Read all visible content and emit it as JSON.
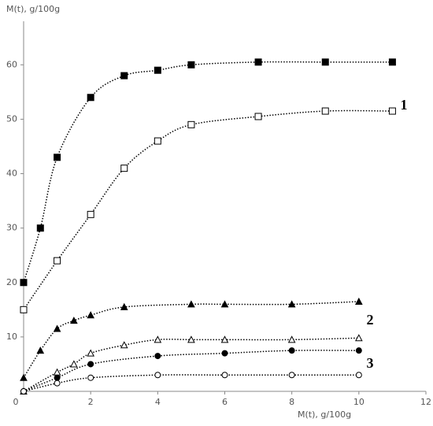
{
  "chart_data": {
    "type": "scatter",
    "y_label": "M(t), g/100g",
    "x_label": "M(t), g/100g",
    "xlim": [
      0,
      12
    ],
    "ylim": [
      0,
      68
    ],
    "xticks": [
      0,
      2,
      4,
      6,
      8,
      10,
      12
    ],
    "yticks": [
      10,
      20,
      30,
      40,
      50,
      60
    ],
    "grid": false,
    "trendline": "dotted",
    "annotations": [
      "1",
      "2",
      "3"
    ],
    "series": [
      {
        "marker": "square",
        "filled": true,
        "color": "#000000",
        "x": [
          0,
          0.5,
          1,
          2,
          3,
          4,
          5,
          7,
          9,
          11
        ],
        "values": [
          20,
          30,
          43,
          54,
          58,
          59,
          60,
          60.5,
          60.5,
          60.5
        ]
      },
      {
        "marker": "square",
        "filled": false,
        "color": "#000000",
        "x": [
          0,
          1,
          2,
          3,
          4,
          5,
          7,
          9,
          11
        ],
        "values": [
          15,
          24,
          32.5,
          41,
          46,
          49,
          50.5,
          51.5,
          51.5
        ]
      },
      {
        "marker": "triangle",
        "filled": true,
        "color": "#000000",
        "x": [
          0,
          0.5,
          1,
          1.5,
          2,
          3,
          5,
          6,
          8,
          10
        ],
        "values": [
          2.5,
          7.5,
          11.5,
          13,
          14,
          15.5,
          16,
          16,
          16,
          16.5
        ]
      },
      {
        "marker": "triangle",
        "filled": false,
        "color": "#000000",
        "x": [
          0,
          1,
          1.5,
          2,
          3,
          4,
          5,
          6,
          8,
          10
        ],
        "values": [
          0,
          3.5,
          5,
          7,
          8.5,
          9.5,
          9.5,
          9.5,
          9.5,
          9.8
        ]
      },
      {
        "marker": "circle",
        "filled": true,
        "color": "#000000",
        "x": [
          0,
          1,
          2,
          4,
          6,
          8,
          10
        ],
        "values": [
          0,
          2.5,
          5,
          6.5,
          7,
          7.5,
          7.5
        ]
      },
      {
        "marker": "circle",
        "filled": false,
        "color": "#000000",
        "x": [
          0,
          1,
          2,
          4,
          6,
          8,
          10
        ],
        "values": [
          0,
          1.5,
          2.5,
          3,
          3,
          3,
          3
        ]
      }
    ]
  }
}
